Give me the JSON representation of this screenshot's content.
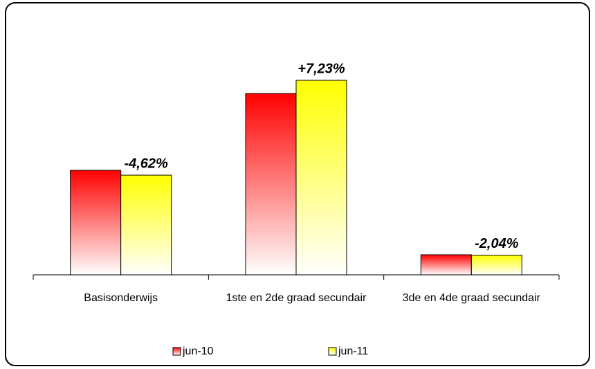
{
  "chart_data": {
    "type": "bar",
    "categories": [
      "Basisonderwijs",
      "1ste en 2de graad secundair",
      "3de en 4de graad secundair"
    ],
    "series": [
      {
        "name": "jun-10",
        "color": "#ff0000",
        "values": [
          151,
          262,
          29
        ]
      },
      {
        "name": "jun-11",
        "color": "#ffff00",
        "values": [
          144,
          281,
          28.4
        ]
      }
    ],
    "annotations": [
      "-4,62%",
      "+7,23%",
      "-2,04%"
    ],
    "ylim": [
      0,
      300
    ]
  }
}
